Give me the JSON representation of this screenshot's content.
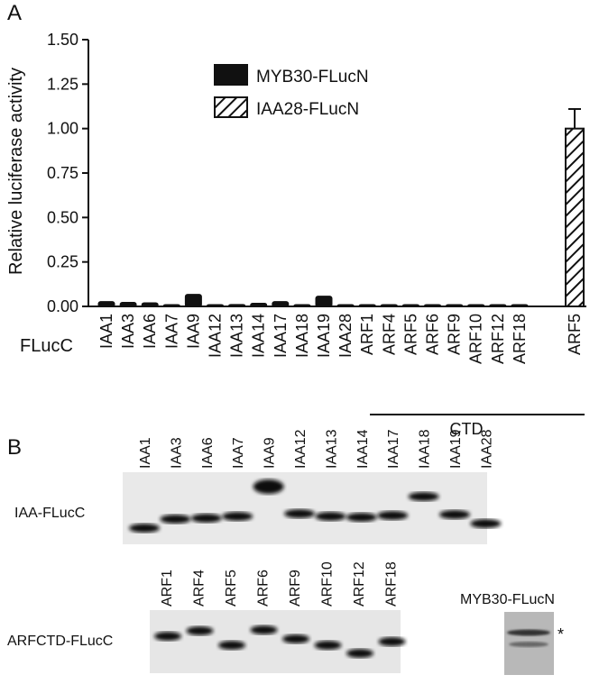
{
  "panel_a_label": "A",
  "panel_b_label": "B",
  "chart_data": {
    "type": "bar",
    "ylabel": "Relative luciferase activity",
    "ylim": [
      0,
      1.5
    ],
    "yticks": [
      "0.00",
      "0.25",
      "0.50",
      "0.75",
      "1.00",
      "1.25",
      "1.50"
    ],
    "ytick_values": [
      0,
      0.25,
      0.5,
      0.75,
      1.0,
      1.25,
      1.5
    ],
    "row_label": "FLucC",
    "categories": [
      "IAA1",
      "IAA3",
      "IAA6",
      "IAA7",
      "IAA9",
      "IAA12",
      "IAA13",
      "IAA14",
      "IAA17",
      "IAA18",
      "IAA19",
      "IAA28",
      "ARF1",
      "ARF4",
      "ARF5",
      "ARF6",
      "ARF9",
      "ARF10",
      "ARF12",
      "ARF18",
      "ARF5"
    ],
    "group_label": "CTD",
    "series": [
      {
        "name": "MYB30-FLucN",
        "fill": "solid",
        "values": [
          0.025,
          0.02,
          0.018,
          0.005,
          0.065,
          0.006,
          0.008,
          0.015,
          0.025,
          0.005,
          0.055,
          0.004,
          0.003,
          0.003,
          0.003,
          0.003,
          0.003,
          0.003,
          0.002,
          0.002,
          null
        ]
      },
      {
        "name": "IAA28-FLucN",
        "fill": "hatched",
        "values": [
          null,
          null,
          null,
          null,
          null,
          null,
          null,
          null,
          null,
          null,
          null,
          null,
          null,
          null,
          null,
          null,
          null,
          null,
          null,
          null,
          1.0
        ],
        "errors": [
          null,
          null,
          null,
          null,
          null,
          null,
          null,
          null,
          null,
          null,
          null,
          null,
          null,
          null,
          null,
          null,
          null,
          null,
          null,
          null,
          0.11
        ]
      }
    ],
    "legend": "top-center"
  },
  "blots": {
    "iaa": {
      "label": "IAA-FLucC",
      "lanes": [
        "IAA1",
        "IAA3",
        "IAA6",
        "IAA7",
        "IAA9",
        "IAA12",
        "IAA13",
        "IAA14",
        "IAA17",
        "IAA18",
        "IAA19",
        "IAA28"
      ]
    },
    "arf": {
      "label": "ARFCTD-FLucC",
      "lanes": [
        "ARF1",
        "ARF4",
        "ARF5",
        "ARF6",
        "ARF9",
        "ARF10",
        "ARF12",
        "ARF18"
      ]
    },
    "myb": {
      "label": "MYB30-FLucN",
      "marker": "*"
    }
  }
}
